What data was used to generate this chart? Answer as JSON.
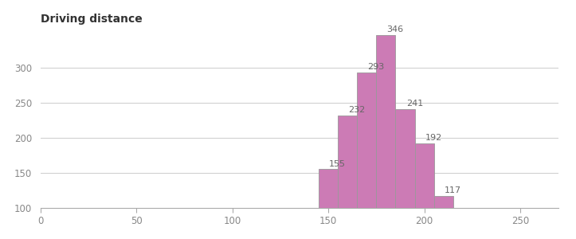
{
  "title": "Driving distance",
  "bar_left_edges": [
    145,
    155,
    165,
    175,
    185,
    195,
    205
  ],
  "bar_heights": [
    155,
    232,
    293,
    346,
    241,
    192,
    117
  ],
  "bin_width": 10,
  "bar_color": "#CC7BB5",
  "bar_edge_color": "#999999",
  "xlim": [
    0,
    270
  ],
  "ylim": [
    100,
    355
  ],
  "xticks": [
    0,
    50,
    100,
    150,
    200,
    250
  ],
  "yticks": [
    100,
    150,
    200,
    250,
    300
  ],
  "title_fontsize": 10,
  "label_fontsize": 8,
  "tick_fontsize": 8.5,
  "grid_color": "#cccccc",
  "background_color": "#ffffff"
}
